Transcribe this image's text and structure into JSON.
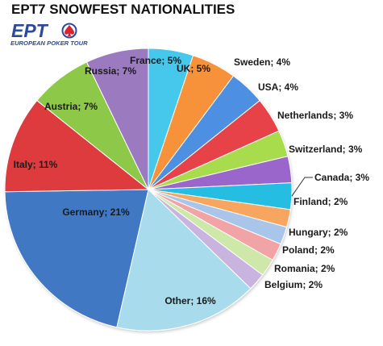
{
  "chart_data": {
    "type": "pie",
    "title": "EPT7 SNOWFEST NATIONALITIES",
    "slices": [
      {
        "label": "France",
        "value": 5,
        "color": "#44c8ec"
      },
      {
        "label": "UK",
        "value": 5,
        "color": "#f7923a"
      },
      {
        "label": "Sweden",
        "value": 4,
        "color": "#4e8fe0"
      },
      {
        "label": "USA",
        "value": 4,
        "color": "#e8434a"
      },
      {
        "label": "Netherlands",
        "value": 3,
        "color": "#a8dc4e"
      },
      {
        "label": "Switzerland",
        "value": 3,
        "color": "#9a66cc"
      },
      {
        "label": "Canada",
        "value": 3,
        "color": "#27bde2"
      },
      {
        "label": "Finland",
        "value": 2,
        "color": "#f8a65e"
      },
      {
        "label": "Hungary",
        "value": 2,
        "color": "#a9c6ea"
      },
      {
        "label": "Poland",
        "value": 2,
        "color": "#f2a3a6"
      },
      {
        "label": "Romania",
        "value": 2,
        "color": "#cde8a8"
      },
      {
        "label": "Belgium",
        "value": 2,
        "color": "#c8b4de"
      },
      {
        "label": "Other",
        "value": 16,
        "color": "#a8dcec"
      },
      {
        "label": "Germany",
        "value": 21,
        "color": "#3f78c4"
      },
      {
        "label": "Italy",
        "value": 11,
        "color": "#dd3b3c"
      },
      {
        "label": "Austria",
        "value": 7,
        "color": "#8ec84a"
      },
      {
        "label": "Russia",
        "value": 7,
        "color": "#9c7ac0"
      }
    ],
    "labels": [
      "France; 5%",
      "UK; 5%",
      "Sweden; 4%",
      "USA; 4%",
      "Netherlands; 3%",
      "Switzerland; 3%",
      "Canada; 3%",
      "Finland; 2%",
      "Hungary; 2%",
      "Poland; 2%",
      "Romania; 2%",
      "Belgium; 2%",
      "Other; 16%",
      "Germany; 21%",
      "Italy; 11%",
      "Austria; 7%",
      "Russia; 7%"
    ],
    "legend": "none"
  },
  "logo": {
    "text": "EPT",
    "tagline": "EUROPEAN POKER TOUR",
    "color": "#2c4a9a",
    "accent": "#d9262e"
  }
}
